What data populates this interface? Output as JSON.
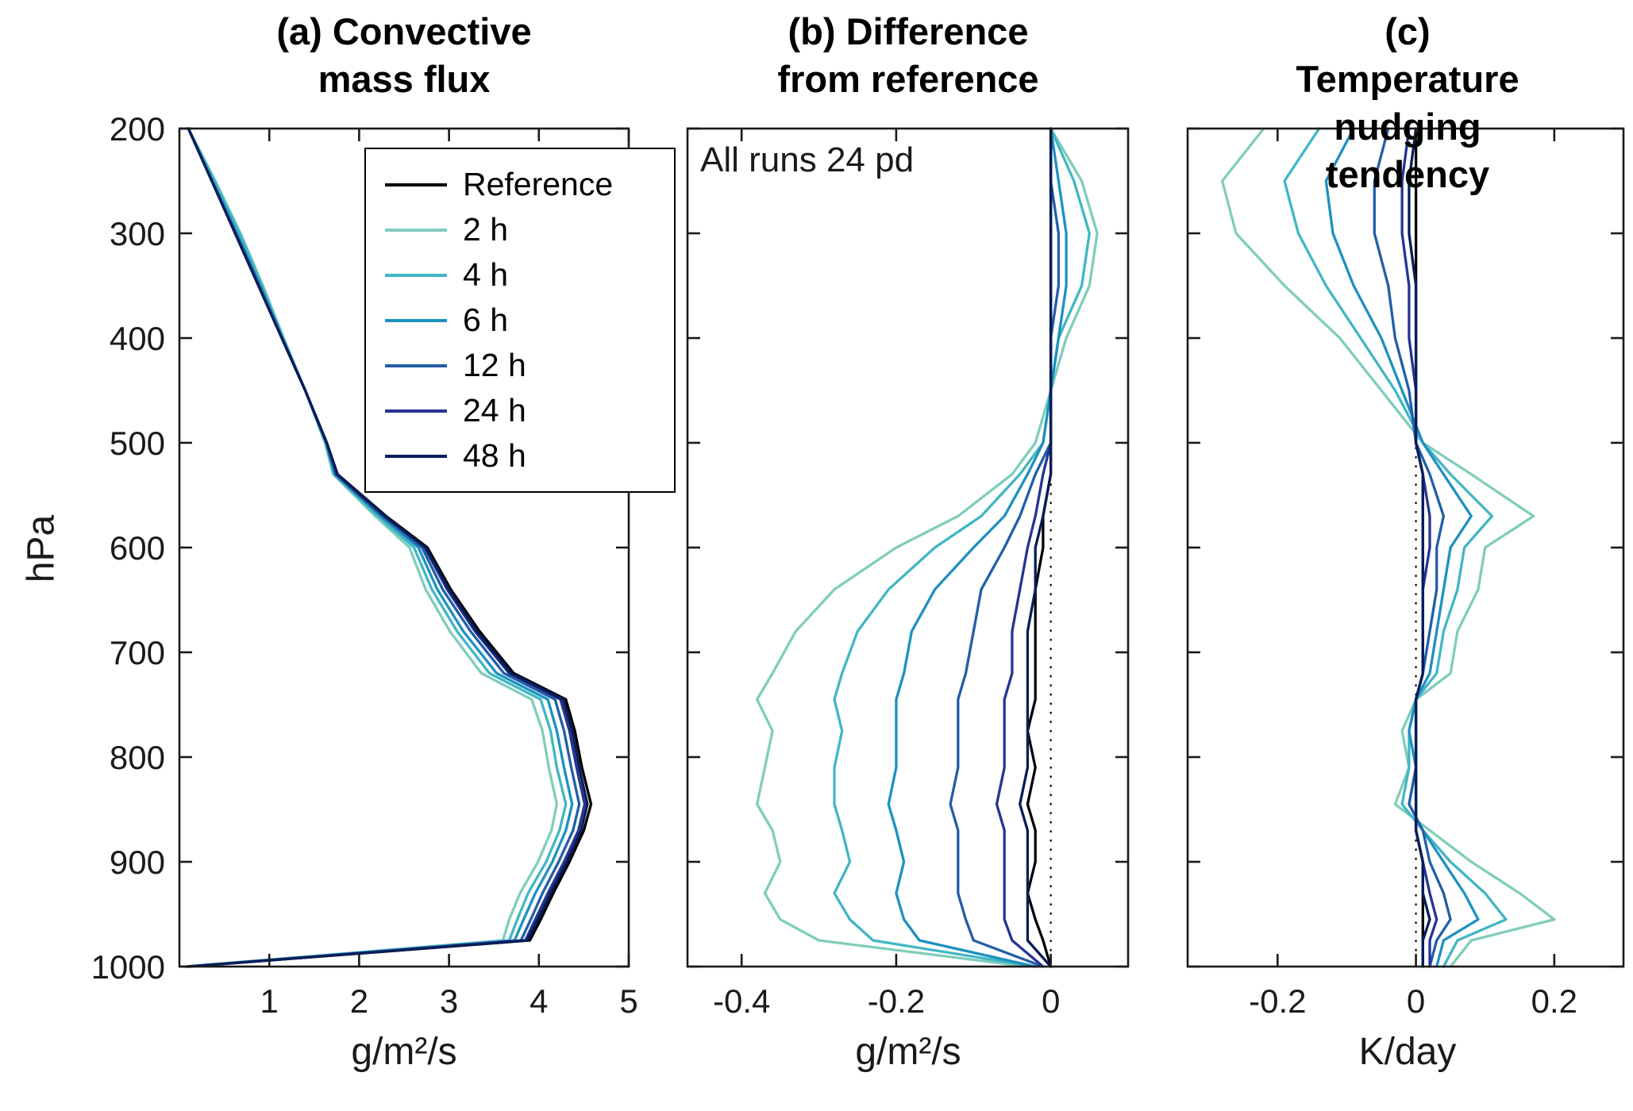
{
  "figure": {
    "background": "#ffffff"
  },
  "legend": {
    "border_color": "#000000",
    "entries": [
      {
        "label": "Reference",
        "color": "#000000"
      },
      {
        "label": "2 h",
        "color": "#7fcdbb"
      },
      {
        "label": "4 h",
        "color": "#41b6c4"
      },
      {
        "label": "6 h",
        "color": "#1d91c0"
      },
      {
        "label": "12 h",
        "color": "#225ea8"
      },
      {
        "label": "24 h",
        "color": "#253494"
      },
      {
        "label": "48 h",
        "color": "#081d58"
      }
    ]
  },
  "chart_data": [
    {
      "id": "a",
      "type": "line",
      "title": "(a) Convective\nmass flux",
      "xlabel": "g/m²/s",
      "ylabel": "hPa",
      "xlim": [
        0,
        5
      ],
      "xticks": [
        1,
        2,
        3,
        4,
        5
      ],
      "xtick_labels": [
        "1",
        "2",
        "3",
        "4",
        "5"
      ],
      "ylim": [
        200,
        1000
      ],
      "yticks": [
        200,
        300,
        400,
        500,
        600,
        700,
        800,
        900,
        1000
      ],
      "ytick_labels": [
        "200",
        "300",
        "400",
        "500",
        "600",
        "700",
        "800",
        "900",
        "1000"
      ],
      "show_ytick_labels": true,
      "zero_line": false,
      "grid": false,
      "pressure_hPa": [
        200,
        250,
        300,
        350,
        400,
        450,
        500,
        530,
        570,
        600,
        640,
        680,
        720,
        745,
        775,
        810,
        845,
        870,
        900,
        930,
        955,
        975,
        1000
      ],
      "series": [
        {
          "name": "Reference",
          "color": "#000000",
          "values": [
            0.1,
            0.36,
            0.62,
            0.88,
            1.14,
            1.4,
            1.64,
            1.76,
            2.3,
            2.76,
            3.02,
            3.34,
            3.72,
            4.3,
            4.4,
            4.48,
            4.58,
            4.5,
            4.34,
            4.16,
            4.02,
            3.9,
            0.1
          ]
        },
        {
          "name": "2 h",
          "color": "#7fcdbb",
          "values": [
            0.1,
            0.4,
            0.68,
            0.93,
            1.16,
            1.4,
            1.62,
            1.71,
            2.18,
            2.56,
            2.74,
            3.01,
            3.36,
            3.92,
            4.04,
            4.11,
            4.2,
            4.14,
            3.99,
            3.79,
            3.67,
            3.6,
            0.07
          ]
        },
        {
          "name": "4 h",
          "color": "#41b6c4",
          "values": [
            0.1,
            0.39,
            0.67,
            0.92,
            1.15,
            1.4,
            1.63,
            1.72,
            2.21,
            2.61,
            2.81,
            3.09,
            3.45,
            4.02,
            4.13,
            4.2,
            4.3,
            4.23,
            4.08,
            3.88,
            3.76,
            3.67,
            0.08
          ]
        },
        {
          "name": "6 h",
          "color": "#1d91c0",
          "values": [
            0.1,
            0.37,
            0.64,
            0.9,
            1.15,
            1.4,
            1.63,
            1.73,
            2.24,
            2.66,
            2.87,
            3.16,
            3.53,
            4.1,
            4.2,
            4.28,
            4.37,
            4.3,
            4.15,
            3.96,
            3.83,
            3.73,
            0.08
          ]
        },
        {
          "name": "12 h",
          "color": "#225ea8",
          "values": [
            0.1,
            0.36,
            0.63,
            0.89,
            1.14,
            1.4,
            1.64,
            1.74,
            2.26,
            2.7,
            2.93,
            3.24,
            3.61,
            4.18,
            4.28,
            4.36,
            4.45,
            4.38,
            4.22,
            4.04,
            3.91,
            3.8,
            0.09
          ]
        },
        {
          "name": "24 h",
          "color": "#253494",
          "values": [
            0.1,
            0.36,
            0.62,
            0.88,
            1.14,
            1.4,
            1.64,
            1.75,
            2.28,
            2.73,
            2.98,
            3.29,
            3.67,
            4.24,
            4.34,
            4.42,
            4.51,
            4.44,
            4.28,
            4.1,
            3.96,
            3.85,
            0.09
          ]
        },
        {
          "name": "48 h",
          "color": "#081d58",
          "values": [
            0.1,
            0.36,
            0.62,
            0.88,
            1.14,
            1.4,
            1.64,
            1.76,
            2.29,
            2.74,
            3.0,
            3.31,
            3.69,
            4.27,
            4.37,
            4.45,
            4.54,
            4.47,
            4.31,
            4.13,
            3.99,
            3.87,
            0.1
          ]
        }
      ]
    },
    {
      "id": "b",
      "type": "line",
      "title": "(b) Difference\nfrom reference",
      "xlabel": "g/m²/s",
      "ylabel": "hPa",
      "annotation": "All runs 24 pd",
      "xlim": [
        -0.47,
        0.1
      ],
      "xticks": [
        -0.4,
        -0.2,
        0
      ],
      "xtick_labels": [
        "-0.4",
        "-0.2",
        "0"
      ],
      "ylim": [
        200,
        1000
      ],
      "yticks": [
        200,
        300,
        400,
        500,
        600,
        700,
        800,
        900,
        1000
      ],
      "ytick_labels": [],
      "show_ytick_labels": false,
      "zero_line": true,
      "grid": false,
      "pressure_hPa": [
        200,
        250,
        300,
        350,
        400,
        450,
        500,
        530,
        570,
        600,
        640,
        680,
        720,
        745,
        775,
        810,
        845,
        870,
        900,
        930,
        955,
        975,
        1000
      ],
      "series": [
        {
          "name": "Reference",
          "color": "#000000",
          "values": [
            0,
            0,
            0,
            0,
            0,
            0,
            0,
            0,
            -0.01,
            -0.01,
            -0.02,
            -0.02,
            -0.02,
            -0.02,
            -0.03,
            -0.02,
            -0.03,
            -0.02,
            -0.02,
            -0.03,
            -0.02,
            -0.01,
            0
          ]
        },
        {
          "name": "2 h",
          "color": "#7fcdbb",
          "values": [
            0,
            0.04,
            0.06,
            0.05,
            0.02,
            0,
            -0.02,
            -0.05,
            -0.12,
            -0.2,
            -0.28,
            -0.33,
            -0.36,
            -0.38,
            -0.36,
            -0.37,
            -0.38,
            -0.36,
            -0.35,
            -0.37,
            -0.35,
            -0.3,
            -0.03
          ]
        },
        {
          "name": "4 h",
          "color": "#41b6c4",
          "values": [
            0,
            0.03,
            0.05,
            0.04,
            0.01,
            0,
            -0.01,
            -0.04,
            -0.09,
            -0.15,
            -0.21,
            -0.25,
            -0.27,
            -0.28,
            -0.27,
            -0.28,
            -0.28,
            -0.27,
            -0.26,
            -0.28,
            -0.26,
            -0.23,
            -0.02
          ]
        },
        {
          "name": "6 h",
          "color": "#1d91c0",
          "values": [
            0,
            0.01,
            0.02,
            0.02,
            0.01,
            0,
            -0.01,
            -0.03,
            -0.06,
            -0.1,
            -0.15,
            -0.18,
            -0.19,
            -0.2,
            -0.2,
            -0.2,
            -0.21,
            -0.2,
            -0.19,
            -0.2,
            -0.19,
            -0.17,
            -0.02
          ]
        },
        {
          "name": "12 h",
          "color": "#225ea8",
          "values": [
            0,
            0,
            0.01,
            0.01,
            0,
            0,
            0,
            -0.02,
            -0.04,
            -0.06,
            -0.09,
            -0.1,
            -0.11,
            -0.12,
            -0.12,
            -0.12,
            -0.13,
            -0.12,
            -0.12,
            -0.12,
            -0.11,
            -0.1,
            -0.01
          ]
        },
        {
          "name": "24 h",
          "color": "#253494",
          "values": [
            0,
            0,
            0,
            0,
            0,
            0,
            0,
            -0.01,
            -0.02,
            -0.03,
            -0.04,
            -0.05,
            -0.05,
            -0.06,
            -0.06,
            -0.06,
            -0.07,
            -0.06,
            -0.06,
            -0.06,
            -0.06,
            -0.05,
            -0.01
          ]
        },
        {
          "name": "48 h",
          "color": "#081d58",
          "values": [
            0,
            0,
            0,
            0,
            0,
            0,
            0,
            0,
            -0.01,
            -0.02,
            -0.02,
            -0.03,
            -0.03,
            -0.03,
            -0.03,
            -0.03,
            -0.04,
            -0.03,
            -0.03,
            -0.03,
            -0.03,
            -0.03,
            0
          ]
        }
      ]
    },
    {
      "id": "c",
      "type": "line",
      "title": "(c) Temperature\nnudging tendency",
      "xlabel": "K/day",
      "ylabel": "hPa",
      "xlim": [
        -0.33,
        0.3
      ],
      "xticks": [
        -0.2,
        0,
        0.2
      ],
      "xtick_labels": [
        "-0.2",
        "0",
        "0.2"
      ],
      "ylim": [
        200,
        1000
      ],
      "yticks": [
        200,
        300,
        400,
        500,
        600,
        700,
        800,
        900,
        1000
      ],
      "ytick_labels": [],
      "show_ytick_labels": false,
      "zero_line": true,
      "grid": false,
      "pressure_hPa": [
        200,
        250,
        300,
        350,
        400,
        450,
        500,
        530,
        570,
        600,
        640,
        680,
        720,
        745,
        775,
        810,
        845,
        870,
        900,
        930,
        955,
        975,
        1000
      ],
      "series": [
        {
          "name": "Reference",
          "color": "#000000",
          "values": [
            0,
            0,
            0,
            0,
            0,
            0,
            0,
            0.01,
            0.01,
            0.01,
            0.01,
            0.01,
            0.01,
            0,
            0,
            0,
            0,
            0,
            0.01,
            0.01,
            0.01,
            0.01,
            0.01
          ]
        },
        {
          "name": "2 h",
          "color": "#7fcdbb",
          "values": [
            -0.22,
            -0.28,
            -0.26,
            -0.19,
            -0.11,
            -0.05,
            0.01,
            0.08,
            0.17,
            0.1,
            0.09,
            0.06,
            0.05,
            0.0,
            -0.02,
            -0.01,
            -0.03,
            0.02,
            0.08,
            0.15,
            0.2,
            0.08,
            0.05
          ]
        },
        {
          "name": "4 h",
          "color": "#41b6c4",
          "values": [
            -0.14,
            -0.19,
            -0.17,
            -0.13,
            -0.08,
            -0.03,
            0.01,
            0.05,
            0.11,
            0.07,
            0.06,
            0.04,
            0.03,
            0.0,
            -0.01,
            -0.01,
            -0.02,
            0.01,
            0.05,
            0.1,
            0.13,
            0.06,
            0.04
          ]
        },
        {
          "name": "6 h",
          "color": "#1d91c0",
          "values": [
            -0.09,
            -0.13,
            -0.12,
            -0.09,
            -0.05,
            -0.02,
            0.01,
            0.04,
            0.08,
            0.05,
            0.04,
            0.03,
            0.02,
            0.0,
            -0.01,
            0.0,
            -0.01,
            0.01,
            0.04,
            0.07,
            0.09,
            0.04,
            0.03
          ]
        },
        {
          "name": "12 h",
          "color": "#225ea8",
          "values": [
            -0.04,
            -0.06,
            -0.06,
            -0.04,
            -0.03,
            -0.01,
            0.0,
            0.02,
            0.04,
            0.03,
            0.03,
            0.02,
            0.01,
            0.0,
            0.0,
            0.0,
            -0.01,
            0.01,
            0.02,
            0.04,
            0.05,
            0.03,
            0.02
          ]
        },
        {
          "name": "24 h",
          "color": "#253494",
          "values": [
            -0.01,
            -0.02,
            -0.02,
            -0.01,
            -0.01,
            0.0,
            0.0,
            0.01,
            0.02,
            0.02,
            0.01,
            0.01,
            0.01,
            0.0,
            0.0,
            0.0,
            0.0,
            0.0,
            0.01,
            0.02,
            0.03,
            0.02,
            0.02
          ]
        },
        {
          "name": "48 h",
          "color": "#081d58",
          "values": [
            0.0,
            -0.01,
            -0.01,
            0.0,
            0.0,
            0.0,
            0.0,
            0.01,
            0.01,
            0.01,
            0.01,
            0.01,
            0.01,
            0.0,
            0.0,
            0.0,
            0.0,
            0.0,
            0.01,
            0.01,
            0.02,
            0.01,
            0.01
          ]
        }
      ]
    }
  ]
}
